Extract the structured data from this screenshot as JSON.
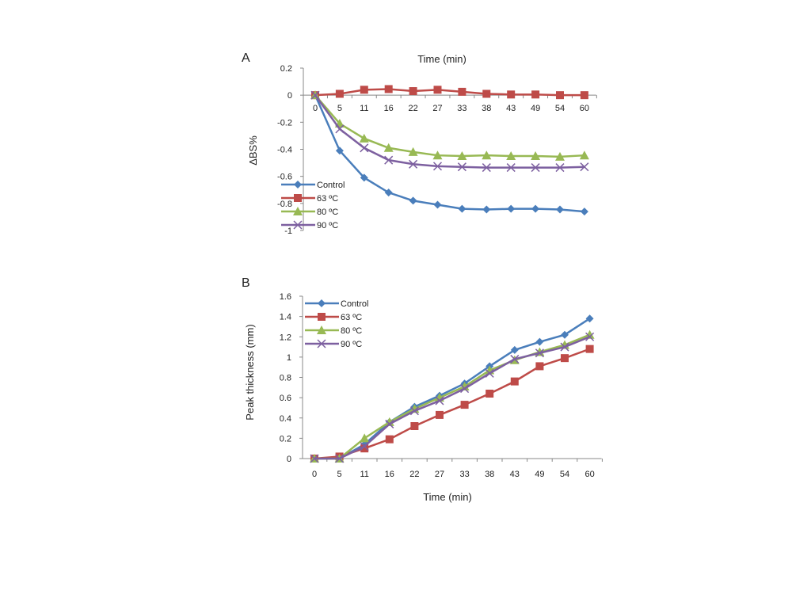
{
  "chart_data": [
    {
      "type": "line",
      "panel_label": "A",
      "xlabel": "Time (min)",
      "ylabel": "ΔBS%",
      "categories": [
        "0",
        "5",
        "11",
        "16",
        "22",
        "27",
        "33",
        "38",
        "43",
        "49",
        "54",
        "60"
      ],
      "ylim": [
        -1,
        0.2
      ],
      "yticks": [
        "0.2",
        "0",
        "-0.2",
        "-0.4",
        "-0.6",
        "-0.8",
        "-1"
      ],
      "legend_position": "bottom-left",
      "grid": false,
      "series": [
        {
          "name": "Control",
          "color": "#4a7ebb",
          "marker": "diamond",
          "values": [
            0,
            -0.41,
            -0.61,
            -0.72,
            -0.78,
            -0.81,
            -0.84,
            -0.845,
            -0.84,
            -0.84,
            -0.845,
            -0.86
          ]
        },
        {
          "name": "63 ºC",
          "color": "#be4b48",
          "marker": "square",
          "values": [
            0,
            0.01,
            0.04,
            0.045,
            0.03,
            0.04,
            0.025,
            0.01,
            0.005,
            0.005,
            0,
            0
          ]
        },
        {
          "name": "80 ºC",
          "color": "#98b954",
          "marker": "triangle",
          "values": [
            0,
            -0.21,
            -0.32,
            -0.39,
            -0.42,
            -0.445,
            -0.45,
            -0.445,
            -0.45,
            -0.45,
            -0.455,
            -0.445
          ]
        },
        {
          "name": "90 ºC",
          "color": "#7d60a0",
          "marker": "x",
          "values": [
            0,
            -0.25,
            -0.39,
            -0.48,
            -0.51,
            -0.525,
            -0.53,
            -0.535,
            -0.535,
            -0.535,
            -0.535,
            -0.53
          ]
        }
      ]
    },
    {
      "type": "line",
      "panel_label": "B",
      "xlabel": "Time (min)",
      "ylabel": "Peak thickness (mm)",
      "categories": [
        "0",
        "5",
        "11",
        "16",
        "22",
        "27",
        "33",
        "38",
        "43",
        "49",
        "54",
        "60"
      ],
      "ylim": [
        0,
        1.6
      ],
      "yticks": [
        "1.6",
        "1.4",
        "1.2",
        "1",
        "0.8",
        "0.6",
        "0.4",
        "0.2",
        "0"
      ],
      "legend_position": "top-left",
      "grid": false,
      "series": [
        {
          "name": "Control",
          "color": "#4a7ebb",
          "marker": "diamond",
          "values": [
            0,
            0,
            0.14,
            0.36,
            0.51,
            0.62,
            0.74,
            0.91,
            1.07,
            1.15,
            1.22,
            1.38
          ]
        },
        {
          "name": "63 ºC",
          "color": "#be4b48",
          "marker": "square",
          "values": [
            0,
            0.02,
            0.1,
            0.19,
            0.32,
            0.43,
            0.53,
            0.64,
            0.76,
            0.91,
            0.99,
            1.08
          ]
        },
        {
          "name": "80 ºC",
          "color": "#98b954",
          "marker": "triangle",
          "values": [
            0,
            0,
            0.2,
            0.36,
            0.49,
            0.6,
            0.71,
            0.87,
            0.97,
            1.05,
            1.12,
            1.22
          ]
        },
        {
          "name": "90 ºC",
          "color": "#7d60a0",
          "marker": "x",
          "values": [
            0,
            0,
            0.12,
            0.34,
            0.47,
            0.57,
            0.69,
            0.84,
            0.98,
            1.04,
            1.1,
            1.2
          ]
        }
      ]
    }
  ]
}
